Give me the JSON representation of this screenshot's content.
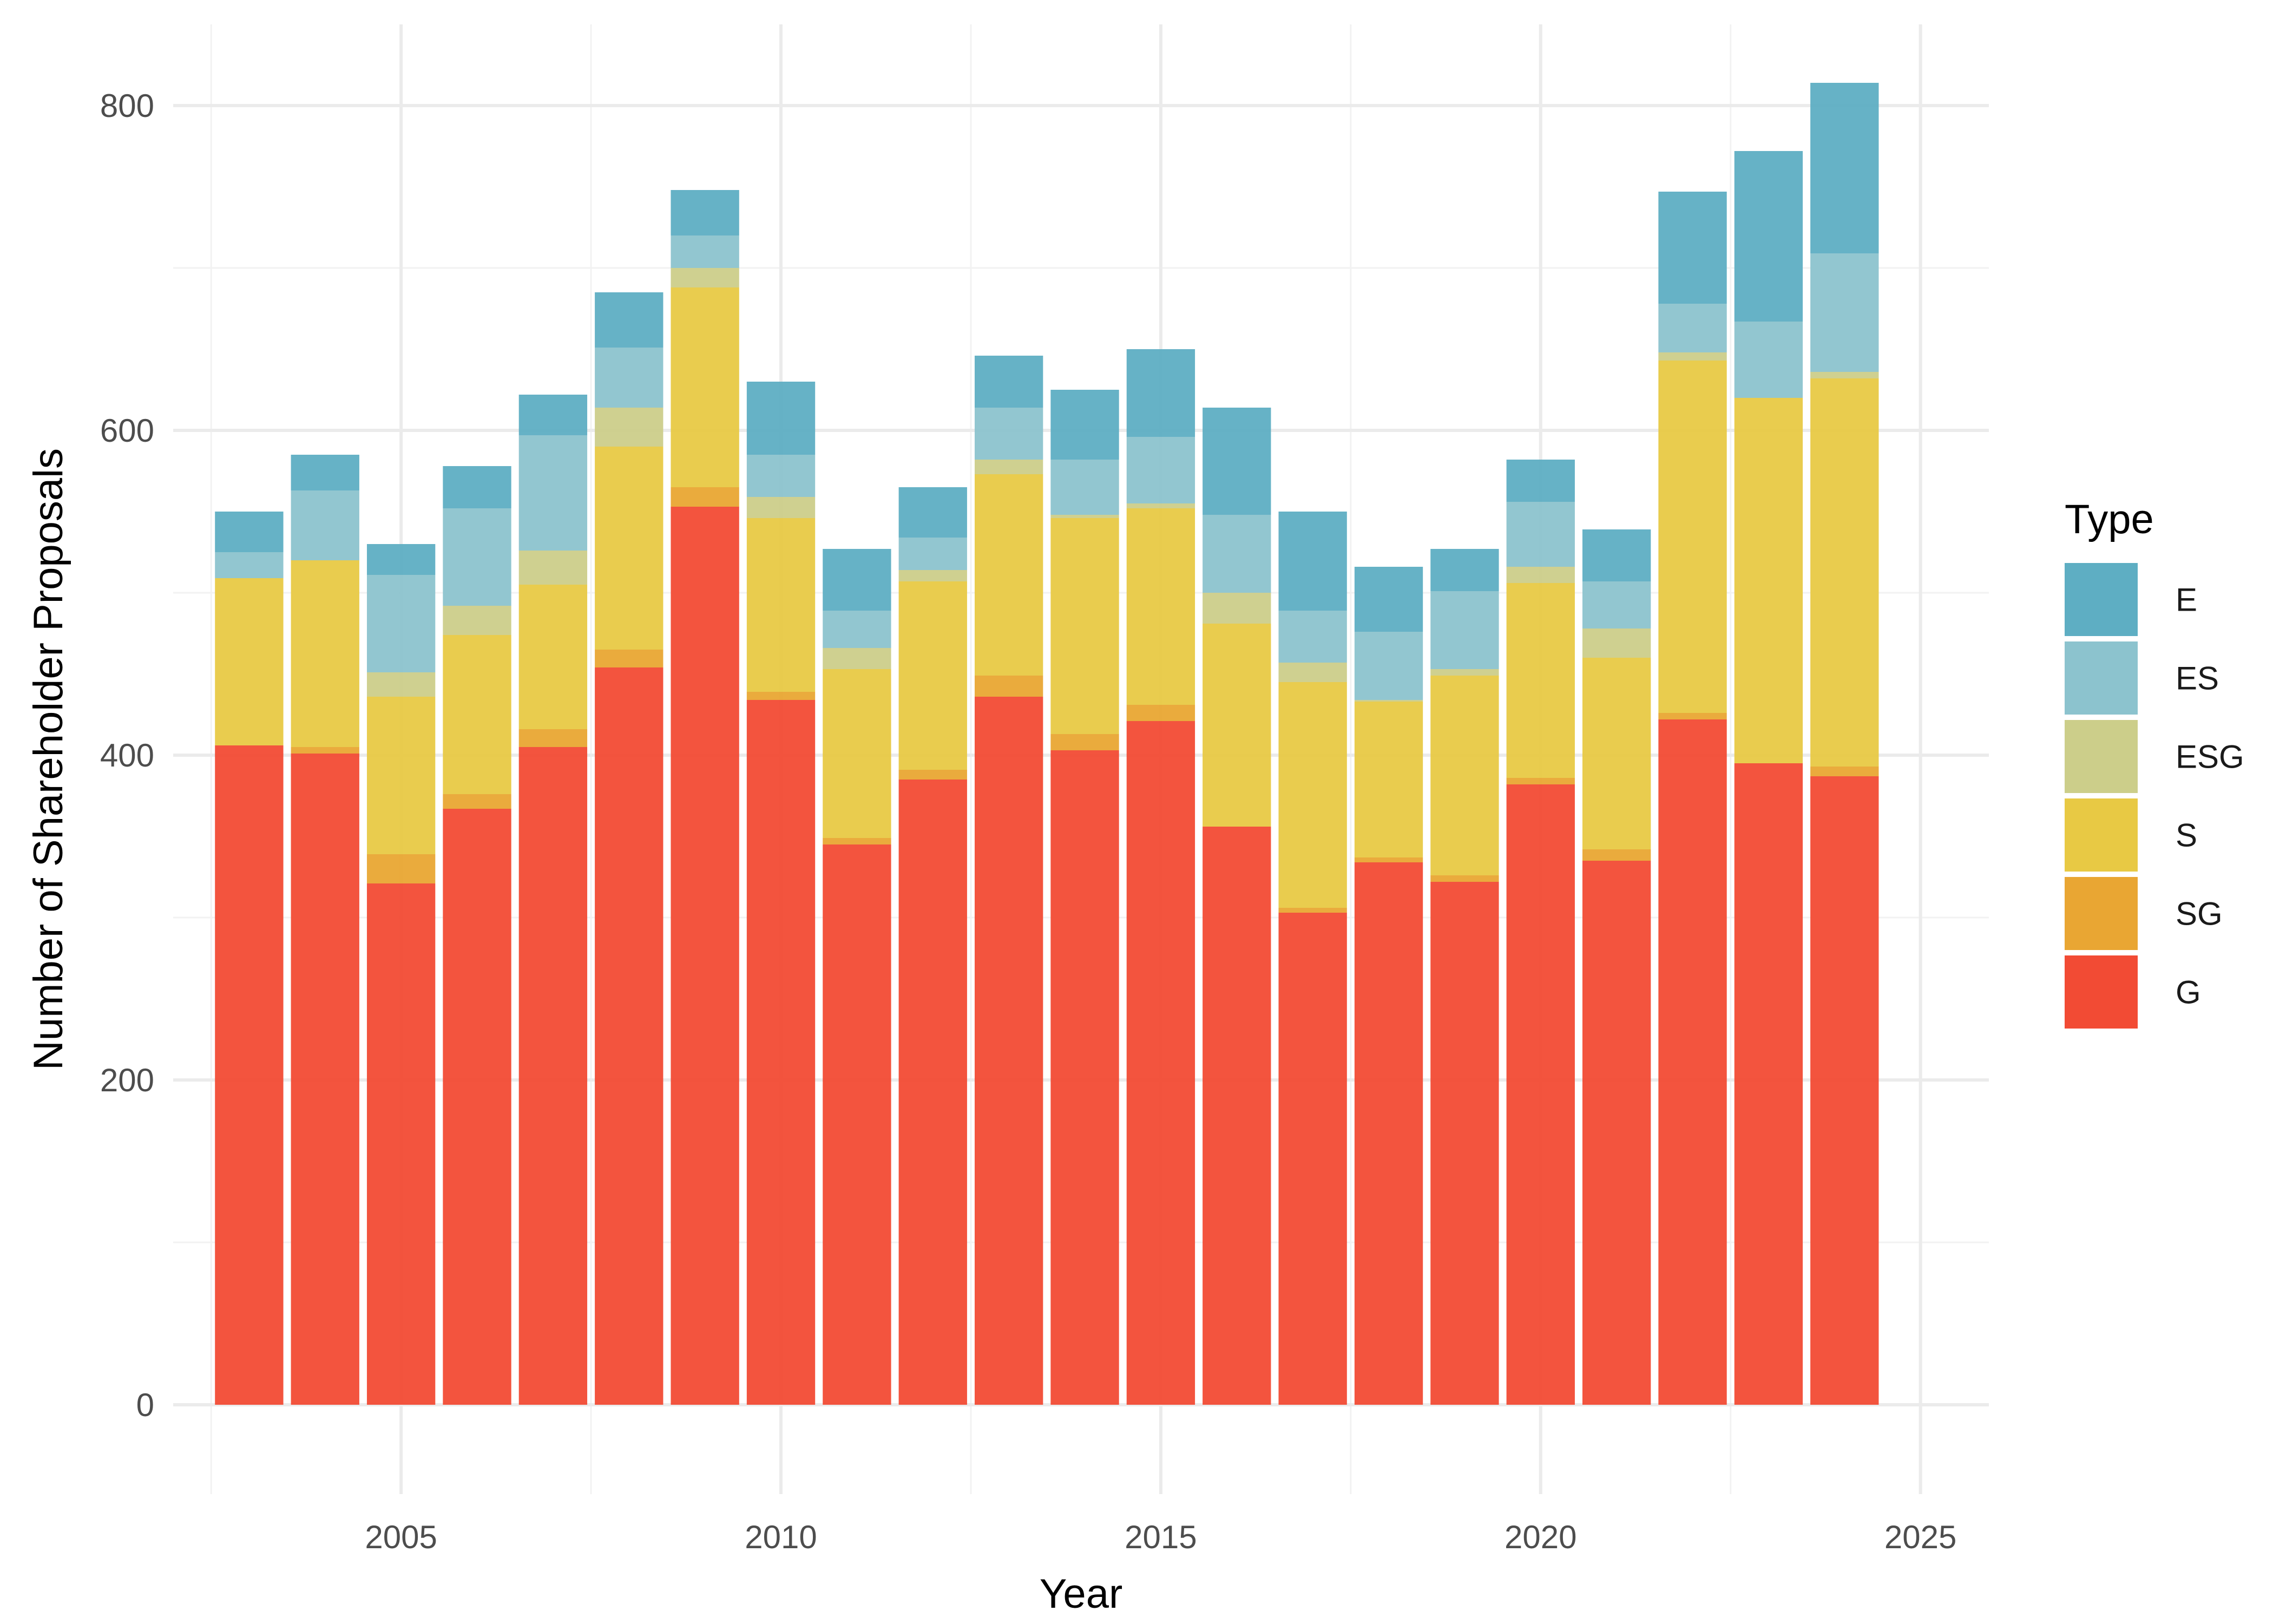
{
  "chart_data": {
    "type": "bar",
    "stacked": true,
    "xlabel": "Year",
    "ylabel": "Number of Shareholder Proposals",
    "ylim": [
      -55,
      850
    ],
    "xlim": [
      2002.0,
      2025.9
    ],
    "x_ticks": [
      2005,
      2010,
      2015,
      2020,
      2025
    ],
    "y_ticks": [
      0,
      200,
      400,
      600,
      800
    ],
    "grid": true,
    "legend": {
      "title": "Type",
      "placement": "right",
      "entries": [
        "E",
        "ES",
        "ESG",
        "S",
        "SG",
        "G"
      ]
    },
    "colors": {
      "E": "#5eaec3",
      "ES": "#8cc3ce",
      "ESG": "#ccce8a",
      "S": "#e8c944",
      "SG": "#e9a633",
      "G": "#f24b34"
    },
    "stack_order": [
      "G",
      "SG",
      "S",
      "ESG",
      "ES",
      "E"
    ],
    "categories": [
      2003,
      2004,
      2005,
      2006,
      2007,
      2008,
      2009,
      2010,
      2011,
      2012,
      2013,
      2014,
      2015,
      2016,
      2017,
      2018,
      2019,
      2020,
      2021,
      2022,
      2023,
      2024
    ],
    "series": [
      {
        "name": "G",
        "values": [
          406,
          401,
          321,
          367,
          405,
          454,
          553,
          434,
          345,
          385,
          436,
          403,
          421,
          356,
          303,
          334,
          322,
          382,
          335,
          422,
          395,
          387
        ]
      },
      {
        "name": "SG",
        "values": [
          0,
          4,
          18,
          9,
          11,
          11,
          12,
          5,
          4,
          6,
          13,
          10,
          10,
          0,
          3,
          3,
          4,
          4,
          7,
          4,
          0,
          6
        ]
      },
      {
        "name": "S",
        "values": [
          103,
          115,
          97,
          98,
          89,
          125,
          123,
          107,
          104,
          116,
          124,
          133,
          121,
          125,
          139,
          96,
          123,
          120,
          118,
          217,
          225,
          239
        ]
      },
      {
        "name": "ESG",
        "values": [
          0,
          0,
          15,
          18,
          21,
          24,
          12,
          13,
          13,
          7,
          9,
          2,
          3,
          19,
          12,
          1,
          4,
          10,
          18,
          5,
          0,
          4
        ]
      },
      {
        "name": "ES",
        "values": [
          16,
          43,
          60,
          60,
          71,
          37,
          20,
          26,
          23,
          20,
          32,
          34,
          41,
          48,
          32,
          42,
          48,
          40,
          29,
          30,
          47,
          73
        ]
      },
      {
        "name": "E",
        "values": [
          25,
          22,
          19,
          26,
          25,
          34,
          28,
          45,
          38,
          31,
          32,
          43,
          54,
          66,
          61,
          40,
          26,
          26,
          32,
          69,
          105,
          105
        ]
      }
    ]
  }
}
